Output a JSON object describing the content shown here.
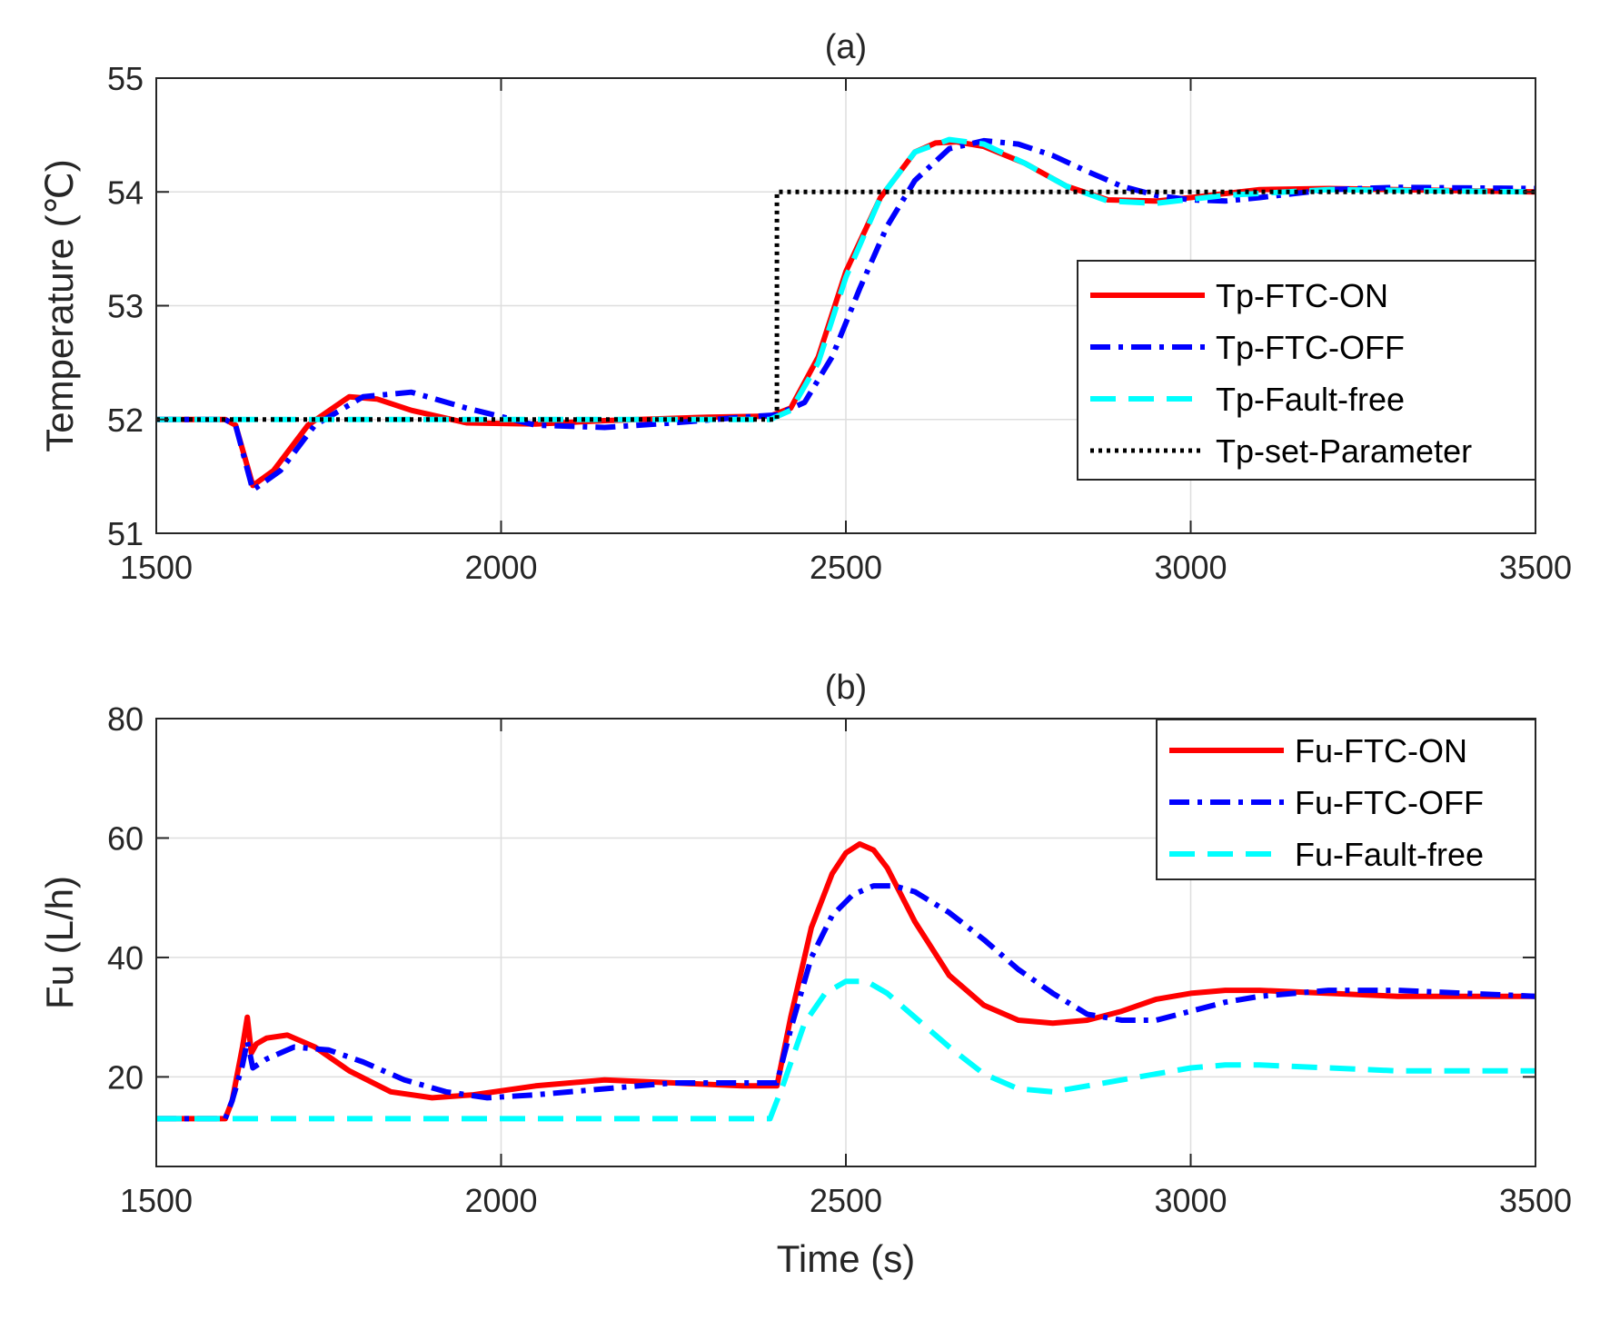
{
  "chart_data": [
    {
      "type": "line",
      "title": "(a)",
      "xlabel": "",
      "ylabel": "Temperature (℃)",
      "xlim": [
        1500,
        3500
      ],
      "ylim": [
        51,
        55
      ],
      "xticks": [
        1500,
        2000,
        2500,
        3000,
        3500
      ],
      "yticks": [
        51,
        52,
        53,
        54,
        55
      ],
      "grid": true,
      "legend_position": "right",
      "series": [
        {
          "name": "Tp-FTC-ON",
          "color": "#ff0000",
          "style": "solid",
          "x": [
            1500,
            1600,
            1615,
            1640,
            1670,
            1720,
            1780,
            1820,
            1870,
            1950,
            2050,
            2150,
            2300,
            2390,
            2420,
            2460,
            2500,
            2550,
            2600,
            2630,
            2660,
            2700,
            2760,
            2820,
            2880,
            2950,
            3000,
            3100,
            3200,
            3300,
            3500
          ],
          "values": [
            52,
            52,
            51.95,
            51.42,
            51.55,
            51.95,
            52.2,
            52.18,
            52.08,
            51.97,
            51.96,
            51.99,
            52.02,
            52.03,
            52.1,
            52.55,
            53.3,
            53.95,
            54.35,
            54.43,
            54.44,
            54.4,
            54.25,
            54.05,
            53.93,
            53.92,
            53.95,
            54.02,
            54.03,
            54.02,
            54.0
          ]
        },
        {
          "name": "Tp-FTC-OFF",
          "color": "#0000ff",
          "style": "dashdot",
          "x": [
            1500,
            1600,
            1615,
            1640,
            1680,
            1730,
            1800,
            1870,
            1950,
            2050,
            2150,
            2250,
            2350,
            2400,
            2440,
            2480,
            2520,
            2560,
            2600,
            2650,
            2700,
            2750,
            2800,
            2850,
            2900,
            2950,
            3000,
            3050,
            3100,
            3200,
            3300,
            3500
          ],
          "values": [
            52,
            52,
            51.95,
            51.38,
            51.55,
            51.95,
            52.2,
            52.24,
            52.1,
            51.95,
            51.93,
            51.97,
            52.02,
            52.04,
            52.15,
            52.55,
            53.15,
            53.7,
            54.1,
            54.38,
            54.45,
            54.42,
            54.32,
            54.18,
            54.05,
            53.97,
            53.93,
            53.92,
            53.95,
            54.02,
            54.04,
            54.03
          ]
        },
        {
          "name": "Tp-Fault-free",
          "color": "#00ffff",
          "style": "dashed",
          "x": [
            1500,
            2390,
            2420,
            2460,
            2500,
            2550,
            2600,
            2650,
            2700,
            2760,
            2820,
            2880,
            2950,
            3050,
            3200,
            3500
          ],
          "values": [
            52,
            52,
            52.08,
            52.5,
            53.25,
            53.95,
            54.35,
            54.46,
            54.42,
            54.25,
            54.05,
            53.92,
            53.9,
            53.97,
            54.02,
            54.0
          ]
        },
        {
          "name": "Tp-set-Parameter",
          "color": "#000000",
          "style": "dotted",
          "x": [
            1500,
            2400,
            2400,
            3500
          ],
          "values": [
            52,
            52,
            54,
            54
          ]
        }
      ]
    },
    {
      "type": "line",
      "title": "(b)",
      "xlabel": "Time (s)",
      "ylabel": "Fu (L/h)",
      "xlim": [
        1500,
        3500
      ],
      "ylim": [
        5,
        80
      ],
      "xticks": [
        1500,
        2000,
        2500,
        3000,
        3500
      ],
      "yticks": [
        20,
        40,
        60,
        80
      ],
      "grid": true,
      "legend_position": "top-right",
      "series": [
        {
          "name": "Fu-FTC-ON",
          "color": "#ff0000",
          "style": "solid",
          "x": [
            1500,
            1600,
            1610,
            1625,
            1632,
            1638,
            1645,
            1660,
            1690,
            1730,
            1780,
            1840,
            1900,
            1960,
            2050,
            2150,
            2250,
            2350,
            2400,
            2420,
            2450,
            2480,
            2500,
            2520,
            2540,
            2560,
            2600,
            2650,
            2700,
            2750,
            2800,
            2850,
            2900,
            2950,
            3000,
            3050,
            3100,
            3200,
            3300,
            3500
          ],
          "values": [
            13,
            13,
            16,
            25,
            30,
            24,
            25.5,
            26.5,
            27,
            25,
            21,
            17.5,
            16.5,
            17,
            18.5,
            19.5,
            19,
            18.5,
            18.5,
            30,
            45,
            54,
            57.5,
            59,
            58,
            55,
            46,
            37,
            32,
            29.5,
            29,
            29.5,
            31,
            33,
            34,
            34.5,
            34.5,
            34,
            33.5,
            33.5
          ]
        },
        {
          "name": "Fu-FTC-OFF",
          "color": "#0000ff",
          "style": "dashdot",
          "x": [
            1500,
            1600,
            1610,
            1625,
            1632,
            1640,
            1660,
            1700,
            1750,
            1800,
            1860,
            1920,
            1980,
            2050,
            2150,
            2250,
            2350,
            2400,
            2420,
            2450,
            2480,
            2510,
            2540,
            2570,
            2600,
            2650,
            2700,
            2750,
            2800,
            2850,
            2900,
            2950,
            3000,
            3050,
            3100,
            3200,
            3300,
            3500
          ],
          "values": [
            13,
            13,
            16,
            22,
            26,
            21.5,
            23,
            25,
            24.5,
            22.5,
            19.5,
            17.5,
            16.5,
            17,
            18,
            19,
            19,
            19,
            28,
            40,
            47,
            50.5,
            52,
            52,
            51,
            47.5,
            43,
            38,
            34,
            30.5,
            29.5,
            29.5,
            31,
            32.5,
            33.5,
            34.5,
            34.5,
            33.5
          ]
        },
        {
          "name": "Fu-Fault-free",
          "color": "#00ffff",
          "style": "dashed",
          "x": [
            1500,
            2390,
            2410,
            2440,
            2470,
            2500,
            2530,
            2560,
            2600,
            2650,
            2700,
            2750,
            2800,
            2850,
            2900,
            2950,
            3000,
            3050,
            3100,
            3200,
            3300,
            3500
          ],
          "values": [
            13,
            13,
            19,
            29,
            34,
            36,
            36,
            34,
            30,
            25,
            20.5,
            18,
            17.5,
            18.5,
            19.5,
            20.5,
            21.5,
            22,
            22,
            21.5,
            21,
            21
          ]
        }
      ]
    }
  ]
}
